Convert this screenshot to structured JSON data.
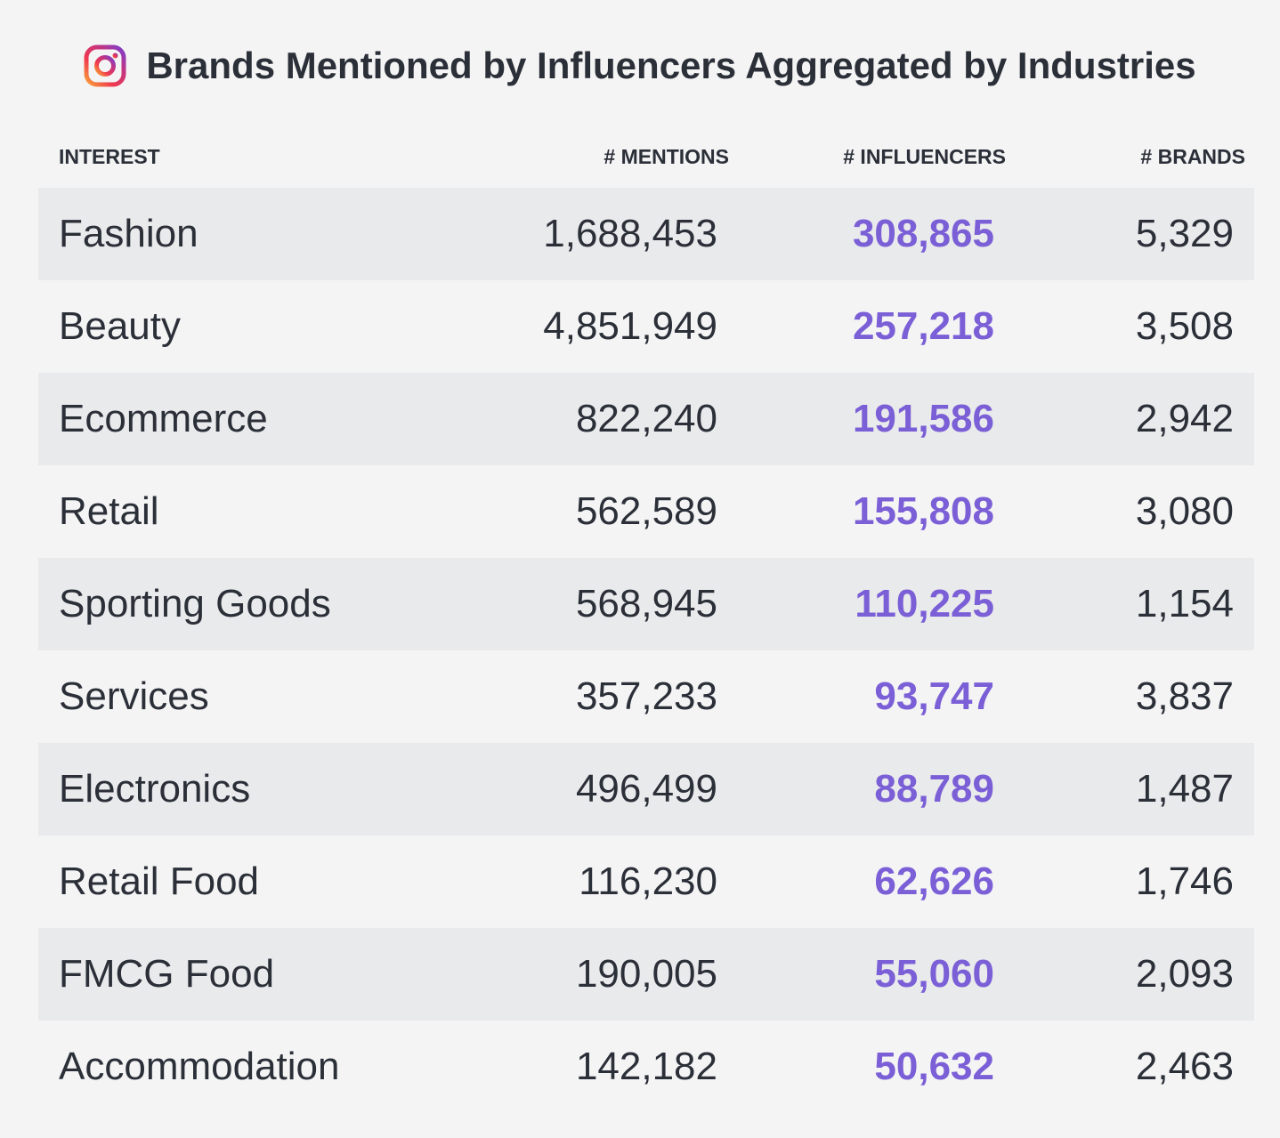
{
  "title": "Brands Mentioned by Influencers Aggregated by Industries",
  "icon": "instagram-icon",
  "colors": {
    "accent": "#7b5fd6",
    "text": "#2b2f38",
    "row_shaded": "#e9eaec",
    "background": "#f4f4f5"
  },
  "chart_data": {
    "type": "table",
    "title": "Brands Mentioned by Influencers Aggregated by Industries",
    "columns": [
      "INTEREST",
      "# MENTIONS",
      "# INFLUENCERS",
      "# BRANDS"
    ],
    "rows": [
      {
        "interest": "Fashion",
        "mentions": "1,688,453",
        "influencers": "308,865",
        "brands": "5,329"
      },
      {
        "interest": "Beauty",
        "mentions": "4,851,949",
        "influencers": "257,218",
        "brands": "3,508"
      },
      {
        "interest": "Ecommerce",
        "mentions": "822,240",
        "influencers": "191,586",
        "brands": "2,942"
      },
      {
        "interest": "Retail",
        "mentions": "562,589",
        "influencers": "155,808",
        "brands": "3,080"
      },
      {
        "interest": "Sporting Goods",
        "mentions": "568,945",
        "influencers": "110,225",
        "brands": "1,154"
      },
      {
        "interest": "Services",
        "mentions": "357,233",
        "influencers": "93,747",
        "brands": "3,837"
      },
      {
        "interest": "Electronics",
        "mentions": "496,499",
        "influencers": "88,789",
        "brands": "1,487"
      },
      {
        "interest": "Retail Food",
        "mentions": "116,230",
        "influencers": "62,626",
        "brands": "1,746"
      },
      {
        "interest": "FMCG Food",
        "mentions": "190,005",
        "influencers": "55,060",
        "brands": "2,093"
      },
      {
        "interest": "Accommodation",
        "mentions": "142,182",
        "influencers": "50,632",
        "brands": "2,463"
      }
    ]
  }
}
